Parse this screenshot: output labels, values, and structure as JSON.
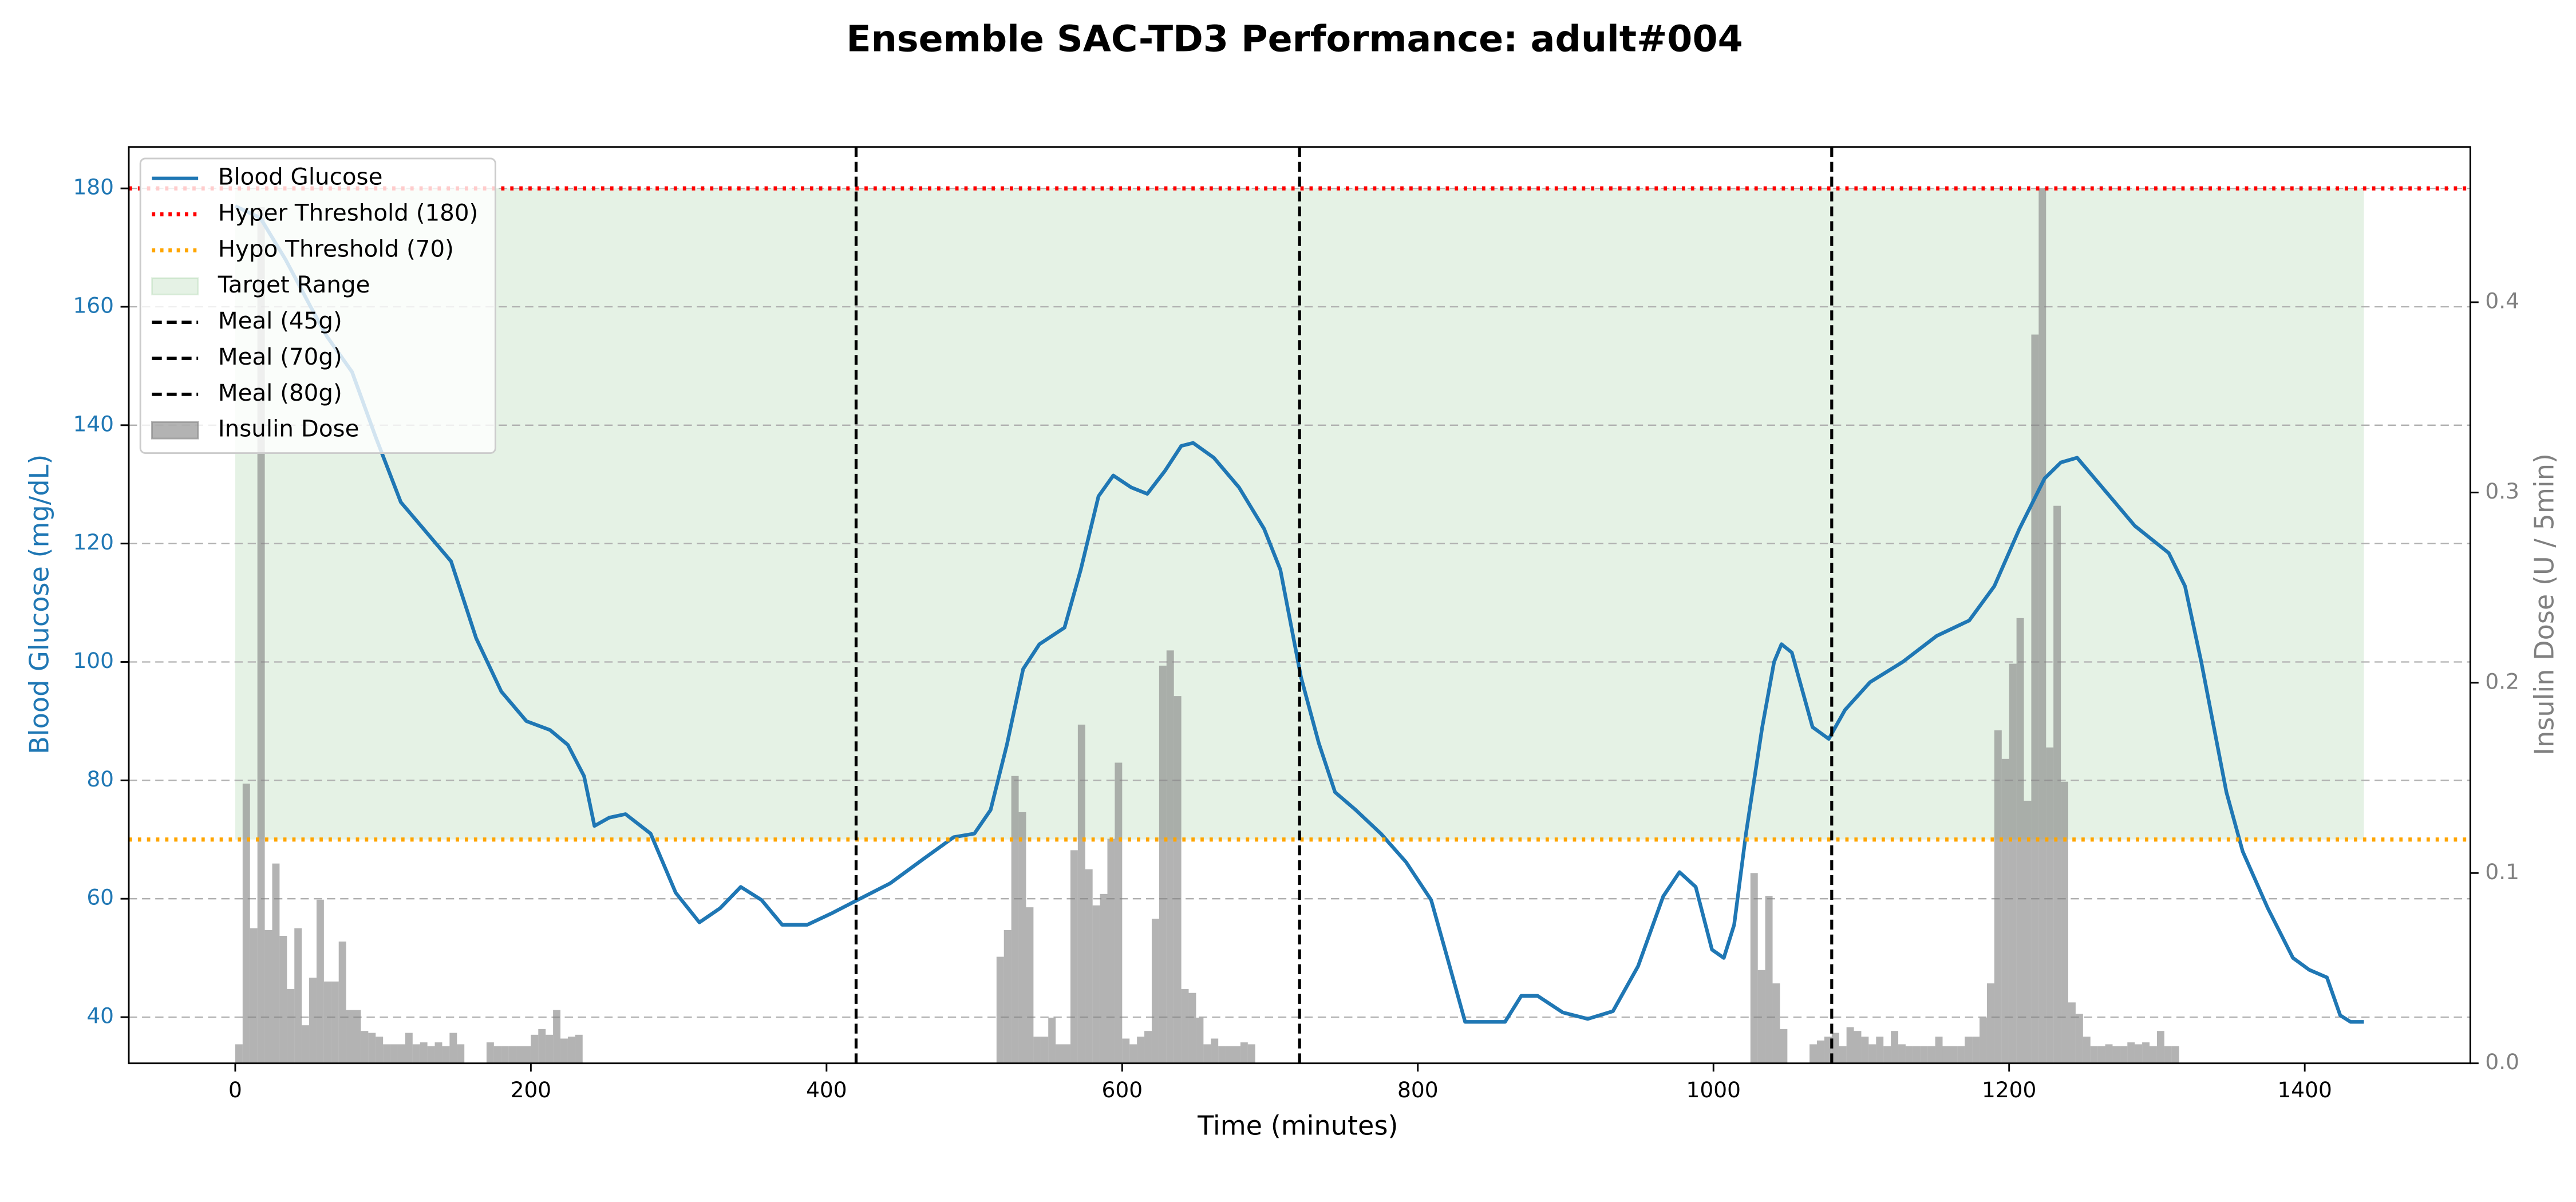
{
  "chart_data": {
    "type": "line",
    "title": "Ensemble SAC-TD3 Performance: adult#004",
    "xlabel": "Time (minutes)",
    "ylabel": "Blood Glucose (mg/dL)",
    "y2label": "Insulin Dose (U / 5min)",
    "xlim": [
      -72,
      1512
    ],
    "ylim": [
      32.2,
      187
    ],
    "y2lim": [
      0,
      0.4816
    ],
    "xticks": [
      0,
      200,
      400,
      600,
      800,
      1000,
      1200,
      1400
    ],
    "yticks": [
      40,
      60,
      80,
      100,
      120,
      140,
      160,
      180
    ],
    "y2ticks": [
      {
        "value": 0,
        "label": "0.0"
      },
      0.1,
      0.2,
      0.3,
      0.4
    ],
    "grid": true,
    "legend": "upper left",
    "series": [
      {
        "name": "Blood Glucose",
        "color": "#1f77b4",
        "x": [
          0,
          17,
          34,
          51,
          62,
          79,
          95,
          112,
          129,
          146,
          163,
          180,
          197,
          213,
          225,
          236,
          243,
          253,
          264,
          281,
          298,
          314,
          328,
          342,
          356,
          370,
          387,
          404,
          421,
          443,
          466,
          486,
          500,
          511,
          522,
          533,
          544,
          561,
          572,
          584,
          594,
          606,
          617,
          629,
          640,
          648,
          662,
          679,
          696,
          707,
          721,
          733,
          744,
          758,
          775,
          792,
          809,
          820,
          832,
          859,
          870,
          881,
          898,
          915,
          932,
          949,
          966,
          977,
          988,
          999,
          1007,
          1014,
          1022,
          1033,
          1041,
          1046,
          1053,
          1067,
          1078,
          1089,
          1106,
          1128,
          1151,
          1173,
          1190,
          1207,
          1224,
          1235,
          1246,
          1263,
          1285,
          1308,
          1319,
          1330,
          1347,
          1358,
          1375,
          1392,
          1403,
          1415,
          1424,
          1431,
          1440
        ],
        "values": [
          177,
          175,
          168,
          160,
          155,
          149,
          138,
          127,
          122,
          117,
          104,
          95,
          90,
          88.5,
          86,
          80.7,
          72.3,
          73.7,
          74.3,
          71,
          61,
          56,
          58.4,
          62,
          59.8,
          55.6,
          55.6,
          57.6,
          59.8,
          62.6,
          66.8,
          70.4,
          71,
          75,
          86,
          98.8,
          103,
          105.8,
          115.6,
          128,
          131.5,
          129.5,
          128.4,
          132.3,
          136.5,
          137,
          134.5,
          129.5,
          122.5,
          115.6,
          97.4,
          86.3,
          78,
          75,
          71,
          66.2,
          59.8,
          50,
          39.2,
          39.2,
          43.6,
          43.6,
          40.8,
          39.7,
          41,
          48.6,
          60.4,
          64.5,
          62,
          51.4,
          50,
          55.6,
          71,
          89,
          100,
          103,
          101.6,
          89,
          87,
          91.9,
          96.6,
          100,
          104.4,
          107,
          112.8,
          122.5,
          131,
          133.7,
          134.5,
          129.5,
          123,
          118.4,
          112.8,
          100,
          78,
          68,
          58.4,
          50,
          48,
          46.7,
          40.3,
          39.2,
          39.2
        ]
      },
      {
        "name": "Insulin Dose",
        "type": "bar",
        "axis": "y2",
        "color": "#808080",
        "alpha": 0.6,
        "x": [
          0,
          5,
          10,
          15,
          20,
          25,
          30,
          35,
          40,
          45,
          50,
          55,
          60,
          65,
          70,
          75,
          80,
          85,
          90,
          95,
          100,
          105,
          110,
          115,
          120,
          125,
          130,
          135,
          140,
          145,
          150,
          170,
          175,
          180,
          185,
          190,
          195,
          200,
          205,
          210,
          215,
          220,
          225,
          230,
          515,
          520,
          525,
          530,
          535,
          540,
          545,
          550,
          555,
          560,
          565,
          570,
          575,
          580,
          585,
          590,
          595,
          600,
          605,
          610,
          615,
          620,
          625,
          630,
          635,
          640,
          645,
          650,
          655,
          660,
          665,
          670,
          675,
          680,
          685,
          1025,
          1030,
          1035,
          1040,
          1045,
          1065,
          1070,
          1075,
          1080,
          1085,
          1090,
          1095,
          1100,
          1105,
          1110,
          1115,
          1120,
          1125,
          1130,
          1135,
          1140,
          1145,
          1150,
          1155,
          1160,
          1165,
          1170,
          1175,
          1180,
          1185,
          1190,
          1195,
          1200,
          1205,
          1210,
          1215,
          1220,
          1225,
          1230,
          1235,
          1240,
          1245,
          1250,
          1255,
          1260,
          1265,
          1270,
          1275,
          1280,
          1285,
          1290,
          1295,
          1300,
          1305,
          1310
        ],
        "values": [
          0.01,
          0.147,
          0.071,
          0.45,
          0.07,
          0.105,
          0.067,
          0.039,
          0.071,
          0.02,
          0.045,
          0.086,
          0.043,
          0.043,
          0.064,
          0.028,
          0.028,
          0.017,
          0.016,
          0.014,
          0.01,
          0.01,
          0.01,
          0.016,
          0.01,
          0.011,
          0.009,
          0.011,
          0.009,
          0.016,
          0.01,
          0.011,
          0.009,
          0.009,
          0.009,
          0.009,
          0.009,
          0.015,
          0.018,
          0.015,
          0.028,
          0.013,
          0.014,
          0.015,
          0.056,
          0.07,
          0.151,
          0.132,
          0.082,
          0.014,
          0.014,
          0.024,
          0.01,
          0.01,
          0.112,
          0.178,
          0.102,
          0.083,
          0.089,
          0.118,
          0.158,
          0.013,
          0.01,
          0.014,
          0.017,
          0.076,
          0.209,
          0.217,
          0.193,
          0.039,
          0.037,
          0.024,
          0.01,
          0.013,
          0.009,
          0.009,
          0.009,
          0.011,
          0.01,
          0.1,
          0.049,
          0.088,
          0.042,
          0.018,
          0.01,
          0.012,
          0.014,
          0.016,
          0.009,
          0.019,
          0.017,
          0.014,
          0.01,
          0.014,
          0.009,
          0.017,
          0.01,
          0.009,
          0.009,
          0.009,
          0.009,
          0.014,
          0.009,
          0.009,
          0.009,
          0.014,
          0.014,
          0.024,
          0.042,
          0.175,
          0.16,
          0.21,
          0.234,
          0.138,
          0.383,
          0.46,
          0.166,
          0.293,
          0.148,
          0.032,
          0.026,
          0.014,
          0.009,
          0.009,
          0.01,
          0.009,
          0.009,
          0.011,
          0.01,
          0.011,
          0.009,
          0.017,
          0.009,
          0.009
        ]
      }
    ],
    "thresholds": [
      {
        "name": "Hyper Threshold (180)",
        "value": 180,
        "color": "red"
      },
      {
        "name": "Hypo Threshold (70)",
        "value": 70,
        "color": "orange"
      }
    ],
    "target_range": {
      "name": "Target Range",
      "range": [
        70,
        180
      ],
      "color": "green",
      "alpha": 0.1
    },
    "meals": [
      {
        "name": "Meal (45g)",
        "x": 420,
        "color": "black"
      },
      {
        "name": "Meal (70g)",
        "x": 720,
        "color": "black"
      },
      {
        "name": "Meal (80g)",
        "x": 1080,
        "color": "black"
      }
    ]
  }
}
